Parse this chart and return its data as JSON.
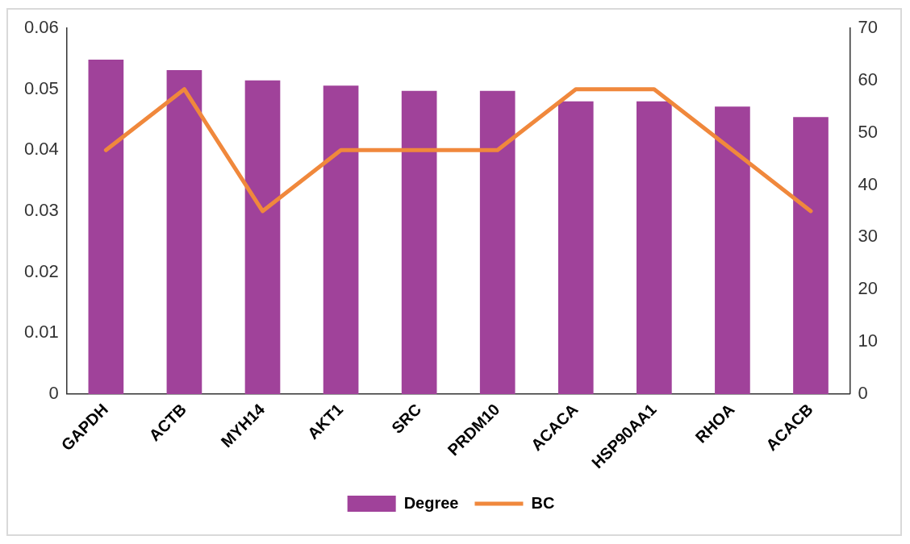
{
  "chart_data": {
    "type": "bar",
    "categories": [
      "GAPDH",
      "ACTB",
      "MYH14",
      "AKT1",
      "SRC",
      "PRDM10",
      "ACACA",
      "HSP90AA1",
      "RHOA",
      "ACACB"
    ],
    "series": [
      {
        "name": "Degree",
        "axis": "y2",
        "color": "#a0429a",
        "values": [
          64,
          62,
          60,
          59,
          58,
          58,
          56,
          56,
          55,
          53
        ]
      },
      {
        "name": "BC",
        "type": "line",
        "color": "#f0883c",
        "values": [
          0.04,
          0.05,
          0.03,
          0.04,
          0.04,
          0.04,
          0.05,
          0.05,
          0.04,
          0.03
        ]
      }
    ],
    "ylim": [
      0,
      0.06
    ],
    "yticks": [
      0,
      0.01,
      0.02,
      0.03,
      0.04,
      0.05,
      0.06
    ],
    "y2lim": [
      0,
      70
    ],
    "y2ticks": [
      0,
      10,
      20,
      30,
      40,
      50,
      60,
      70
    ],
    "grid": false,
    "legend": "bottom",
    "marker": "none",
    "line_style": "solid"
  }
}
